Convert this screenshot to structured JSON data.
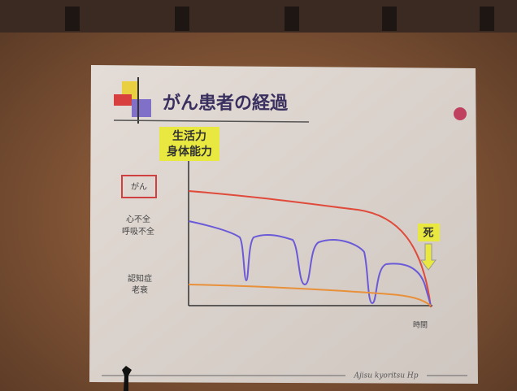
{
  "slide": {
    "title": "がん患者の経過",
    "y_axis_label": [
      "生活力",
      "身体能力"
    ],
    "trajectories": [
      {
        "label": [
          "がん"
        ]
      },
      {
        "label": [
          "心不全",
          "呼吸不全"
        ]
      },
      {
        "label": [
          "認知症",
          "老衰"
        ]
      }
    ],
    "end_label": "死",
    "x_axis_label": "時間",
    "footer": "Ajisu kyoritsu Hp"
  }
}
